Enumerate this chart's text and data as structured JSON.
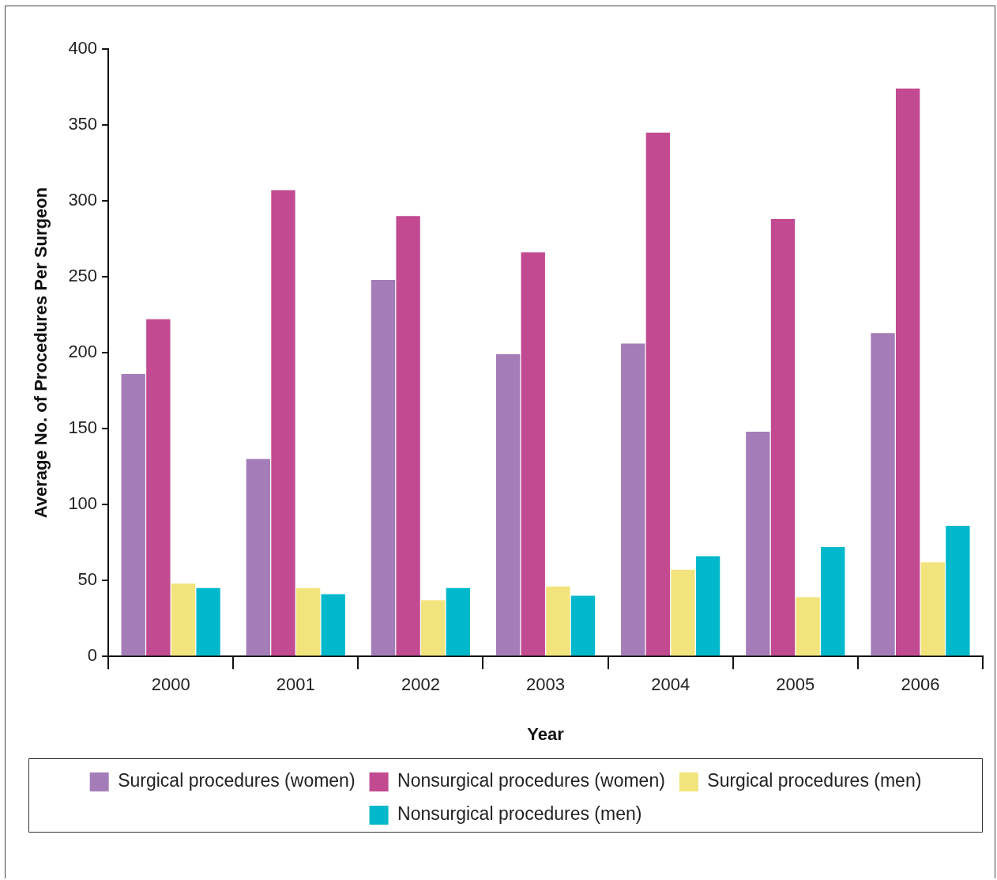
{
  "chart_data": {
    "type": "bar",
    "xlabel": "Year",
    "ylabel": "Average No. of Procedures Per Surgeon",
    "categories": [
      "2000",
      "2001",
      "2002",
      "2003",
      "2004",
      "2005",
      "2006"
    ],
    "series": [
      {
        "name": "Surgical procedures (women)",
        "color": "#a47db8",
        "values": [
          186,
          130,
          248,
          199,
          206,
          148,
          213
        ]
      },
      {
        "name": "Nonsurgical procedures (women)",
        "color": "#c24a91",
        "values": [
          222,
          307,
          290,
          266,
          345,
          288,
          374
        ]
      },
      {
        "name": "Surgical procedures (men)",
        "color": "#f2e47c",
        "values": [
          48,
          45,
          37,
          46,
          57,
          39,
          62
        ]
      },
      {
        "name": "Nonsurgical procedures (men)",
        "color": "#00b8cc",
        "values": [
          45,
          41,
          45,
          40,
          66,
          72,
          86
        ]
      }
    ],
    "ylim": [
      0,
      400
    ],
    "yticks": [
      0,
      50,
      100,
      150,
      200,
      250,
      300,
      350,
      400
    ],
    "grid": false,
    "legend": "bottom"
  }
}
